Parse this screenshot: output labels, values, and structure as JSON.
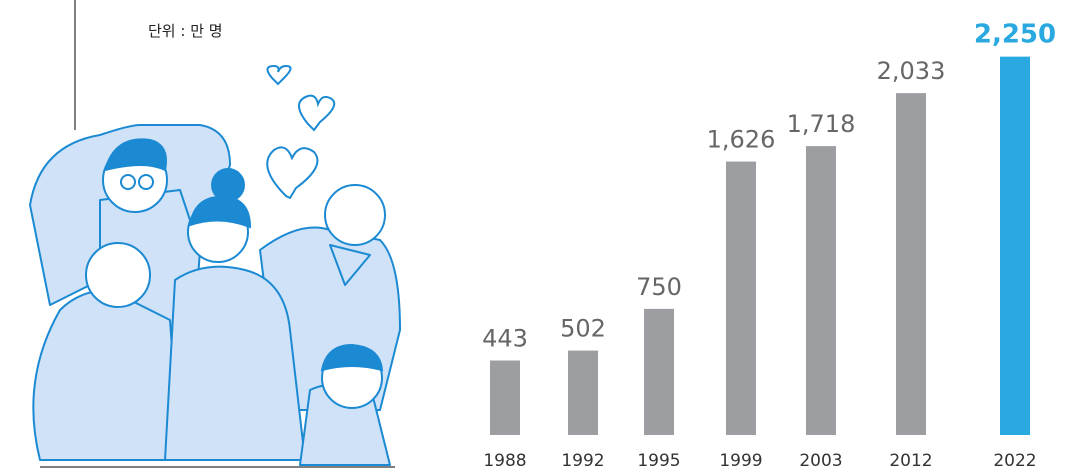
{
  "chart_data": {
    "type": "bar",
    "unit": "단위 : 만 명",
    "categories": [
      "1988",
      "1992",
      "1995",
      "1999",
      "2003",
      "2012",
      "2022"
    ],
    "values": [
      443,
      502,
      750,
      1626,
      1718,
      2033,
      2250
    ],
    "value_labels": [
      "443",
      "502",
      "750",
      "1,626",
      "1,718",
      "2,033",
      "2,250"
    ],
    "colors": [
      "#9d9ea2",
      "#9d9ea2",
      "#9d9ea2",
      "#9d9ea2",
      "#9d9ea2",
      "#9d9ea2",
      "#29a9e0"
    ],
    "ylim": [
      0,
      2450
    ]
  }
}
